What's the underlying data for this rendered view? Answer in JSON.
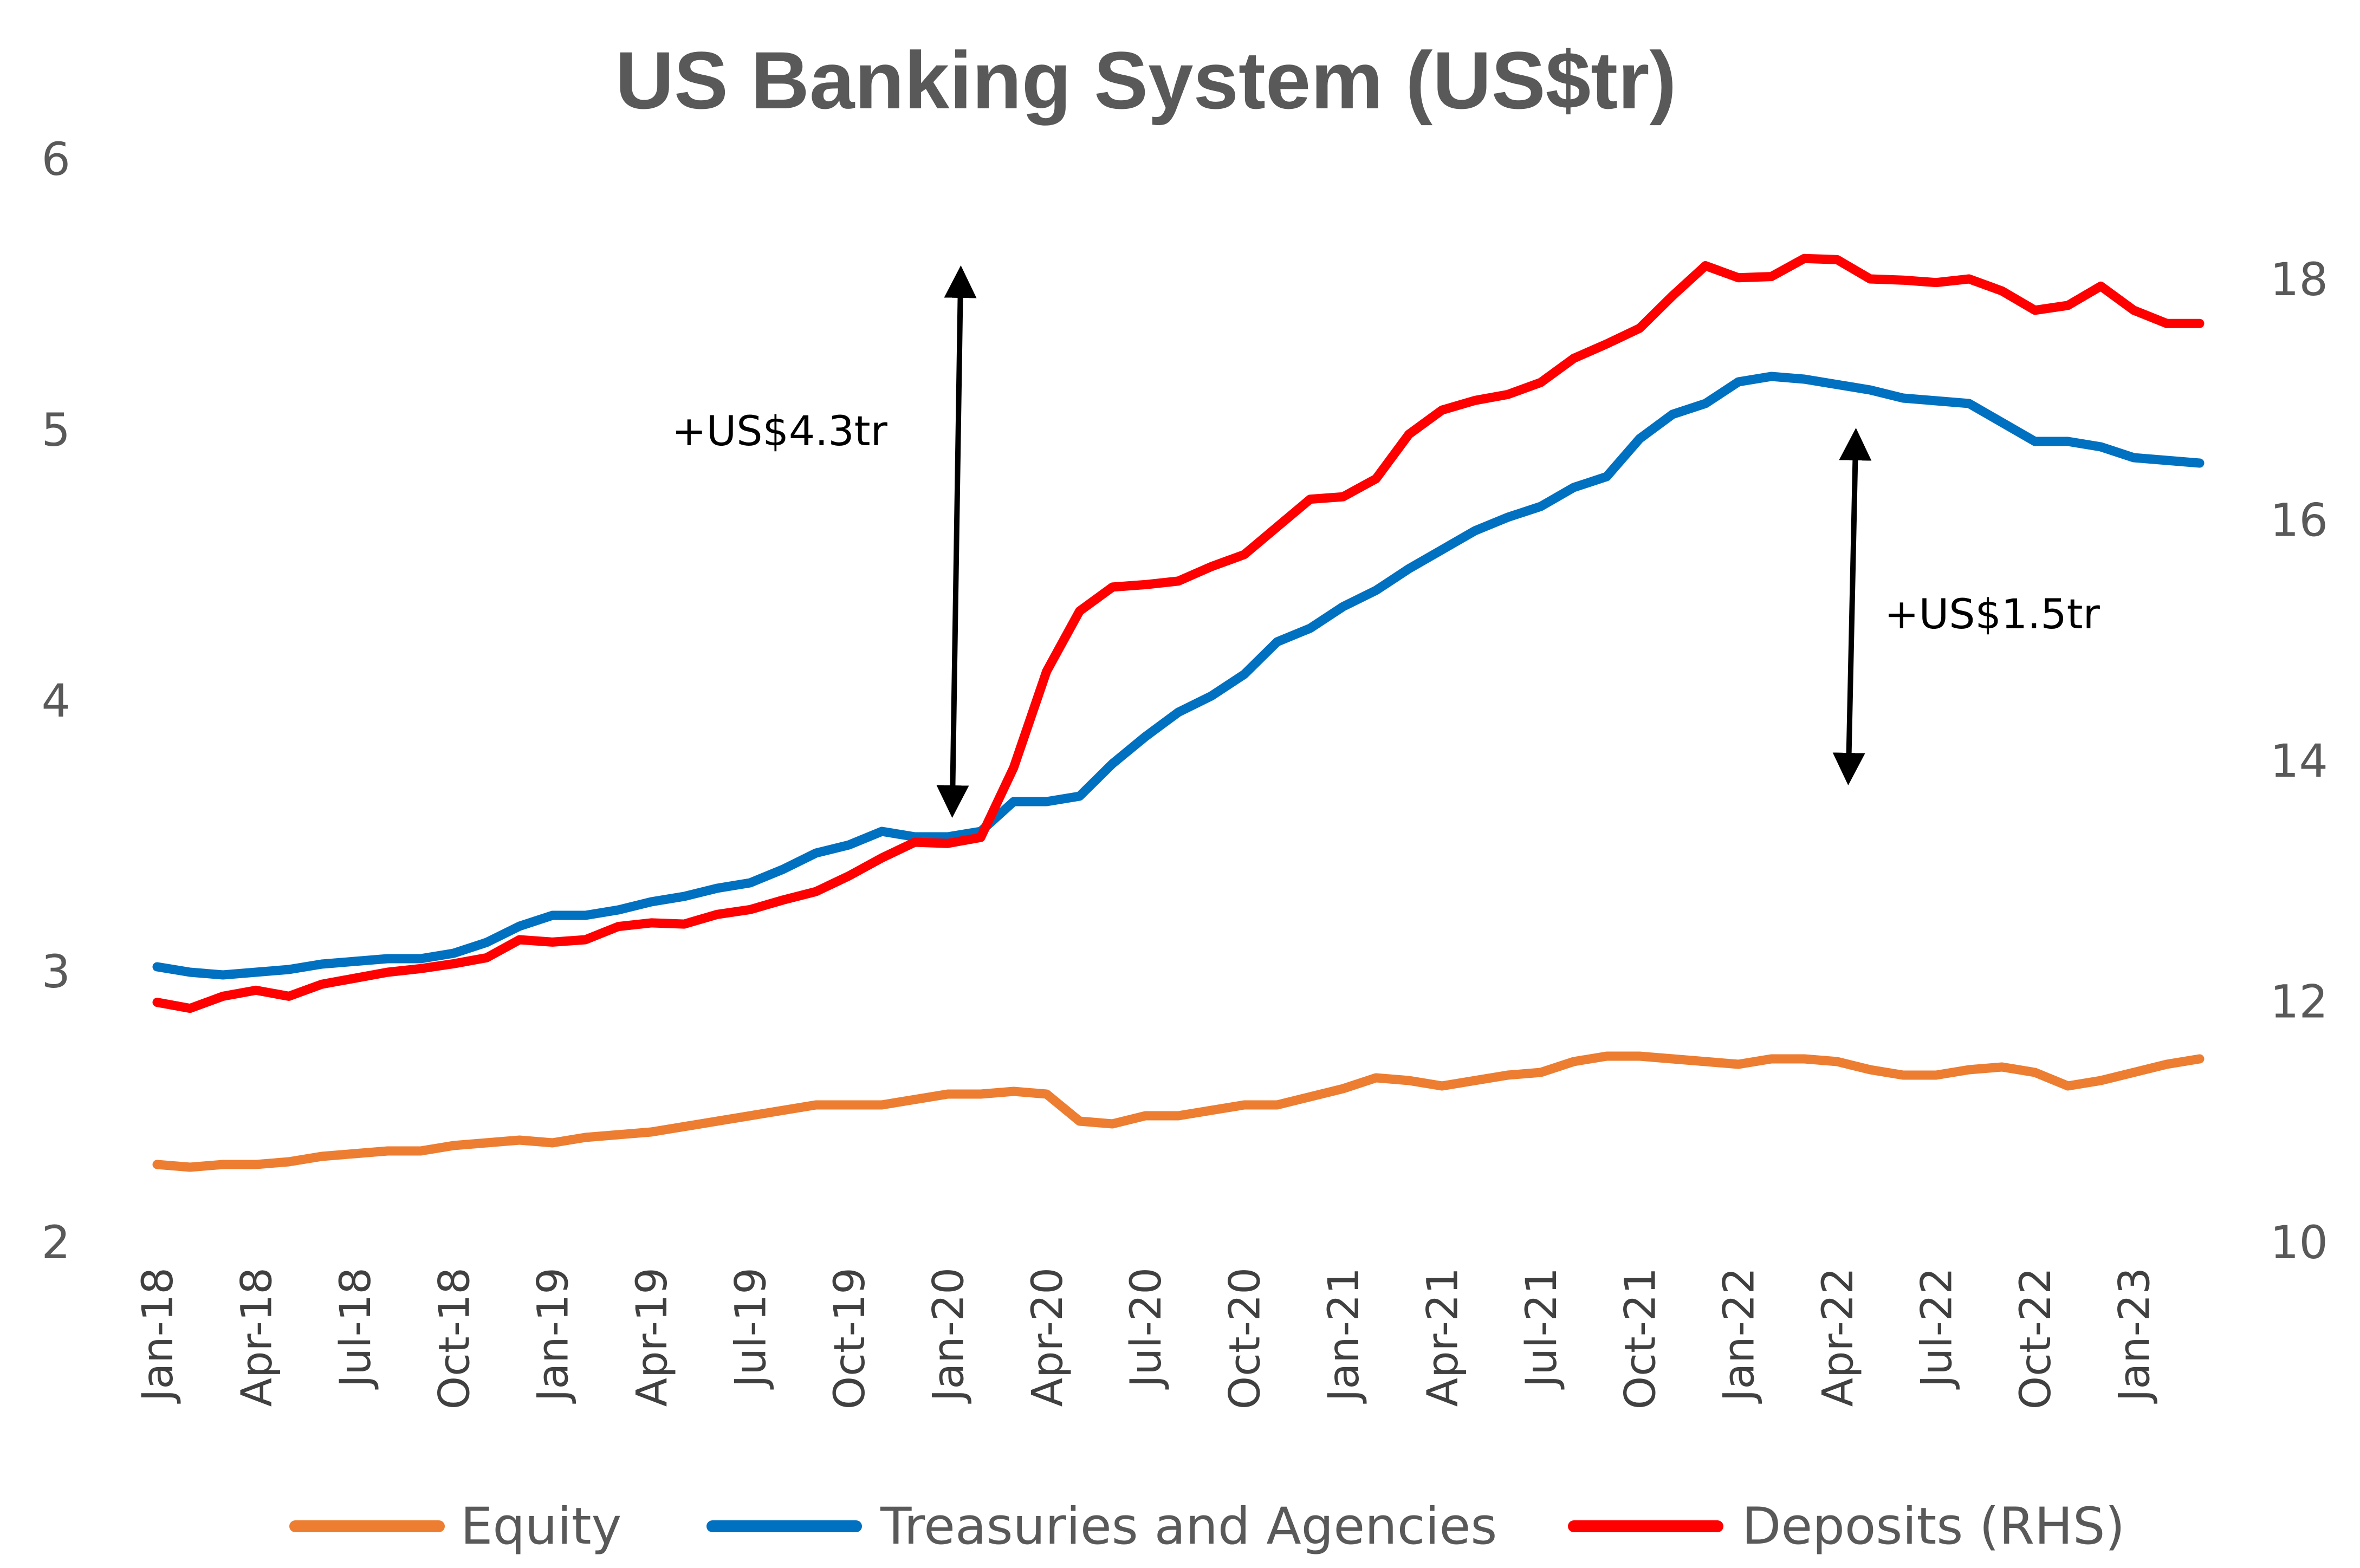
{
  "chart_data": {
    "type": "line",
    "title": "US Banking System (US$tr)",
    "y_left": {
      "range": [
        2,
        6
      ],
      "ticks": [
        "2",
        "3",
        "4",
        "5",
        "6"
      ]
    },
    "y_right": {
      "range": [
        10,
        19
      ],
      "ticks": [
        "10",
        "12",
        "14",
        "16",
        "18"
      ]
    },
    "x_tick_labels": [
      "Jan-18",
      "Apr-18",
      "Jul-18",
      "Oct-18",
      "Jan-19",
      "Apr-19",
      "Jul-19",
      "Oct-19",
      "Jan-20",
      "Apr-20",
      "Jul-20",
      "Oct-20",
      "Jan-21",
      "Apr-21",
      "Jul-21",
      "Oct-21",
      "Jan-22",
      "Apr-22",
      "Jul-22",
      "Oct-22",
      "Jan-23"
    ],
    "x": [
      "Jan-18",
      "Feb-18",
      "Mar-18",
      "Apr-18",
      "May-18",
      "Jun-18",
      "Jul-18",
      "Aug-18",
      "Sep-18",
      "Oct-18",
      "Nov-18",
      "Dec-18",
      "Jan-19",
      "Feb-19",
      "Mar-19",
      "Apr-19",
      "May-19",
      "Jun-19",
      "Jul-19",
      "Aug-19",
      "Sep-19",
      "Oct-19",
      "Nov-19",
      "Dec-19",
      "Jan-20",
      "Feb-20",
      "Mar-20",
      "Apr-20",
      "May-20",
      "Jun-20",
      "Jul-20",
      "Aug-20",
      "Sep-20",
      "Oct-20",
      "Nov-20",
      "Dec-20",
      "Jan-21",
      "Feb-21",
      "Mar-21",
      "Apr-21",
      "May-21",
      "Jun-21",
      "Jul-21",
      "Aug-21",
      "Sep-21",
      "Oct-21",
      "Nov-21",
      "Dec-21",
      "Jan-22",
      "Feb-22",
      "Mar-22",
      "Apr-22",
      "May-22",
      "Jun-22",
      "Jul-22",
      "Aug-22",
      "Sep-22",
      "Oct-22",
      "Nov-22",
      "Dec-22",
      "Jan-23",
      "Feb-23",
      "Mar-23"
    ],
    "grid": false,
    "legend_position": "bottom",
    "series": [
      {
        "name": "Equity",
        "axis": "left",
        "color": "#ED7D31",
        "values": [
          2.29,
          2.28,
          2.29,
          2.29,
          2.3,
          2.32,
          2.33,
          2.34,
          2.34,
          2.36,
          2.37,
          2.38,
          2.37,
          2.39,
          2.4,
          2.41,
          2.43,
          2.45,
          2.47,
          2.49,
          2.51,
          2.51,
          2.51,
          2.53,
          2.55,
          2.55,
          2.56,
          2.55,
          2.45,
          2.44,
          2.47,
          2.47,
          2.49,
          2.51,
          2.51,
          2.54,
          2.57,
          2.61,
          2.6,
          2.58,
          2.6,
          2.62,
          2.63,
          2.67,
          2.69,
          2.69,
          2.68,
          2.67,
          2.66,
          2.68,
          2.68,
          2.67,
          2.64,
          2.62,
          2.62,
          2.64,
          2.65,
          2.63,
          2.58,
          2.6,
          2.63,
          2.66,
          2.68
        ]
      },
      {
        "name": "Treasuries and Agencies",
        "axis": "left",
        "color": "#0070C0",
        "values": [
          3.02,
          3.0,
          2.99,
          3.0,
          3.01,
          3.03,
          3.04,
          3.05,
          3.05,
          3.07,
          3.11,
          3.17,
          3.21,
          3.21,
          3.23,
          3.26,
          3.28,
          3.31,
          3.33,
          3.38,
          3.44,
          3.47,
          3.52,
          3.5,
          3.5,
          3.52,
          3.63,
          3.63,
          3.65,
          3.77,
          3.87,
          3.96,
          4.02,
          4.1,
          4.22,
          4.27,
          4.35,
          4.41,
          4.49,
          4.56,
          4.63,
          4.68,
          4.72,
          4.79,
          4.83,
          4.97,
          5.06,
          5.1,
          5.18,
          5.2,
          5.19,
          5.17,
          5.15,
          5.12,
          5.11,
          5.1,
          5.03,
          4.96,
          4.96,
          4.94,
          4.9,
          4.89,
          4.88
        ]
      },
      {
        "name": "Deposits (RHS)",
        "axis": "right",
        "color": "#FF0000",
        "values": [
          12.0,
          11.95,
          12.05,
          12.1,
          12.05,
          12.15,
          12.2,
          12.25,
          12.28,
          12.32,
          12.37,
          12.52,
          12.5,
          12.52,
          12.63,
          12.66,
          12.65,
          12.73,
          12.77,
          12.85,
          12.92,
          13.05,
          13.2,
          13.33,
          13.32,
          13.37,
          13.95,
          14.75,
          15.25,
          15.45,
          15.47,
          15.5,
          15.62,
          15.72,
          15.95,
          16.18,
          16.2,
          16.35,
          16.72,
          16.92,
          17.0,
          17.05,
          17.15,
          17.35,
          17.47,
          17.6,
          17.87,
          18.12,
          18.02,
          18.03,
          18.18,
          18.17,
          18.01,
          18.0,
          17.98,
          18.01,
          17.91,
          17.75,
          17.79,
          17.95,
          17.75,
          17.64,
          17.64
        ]
      }
    ],
    "annotations": [
      {
        "text": "+US$4.3tr"
      },
      {
        "text": "+US$1.5tr"
      }
    ]
  }
}
